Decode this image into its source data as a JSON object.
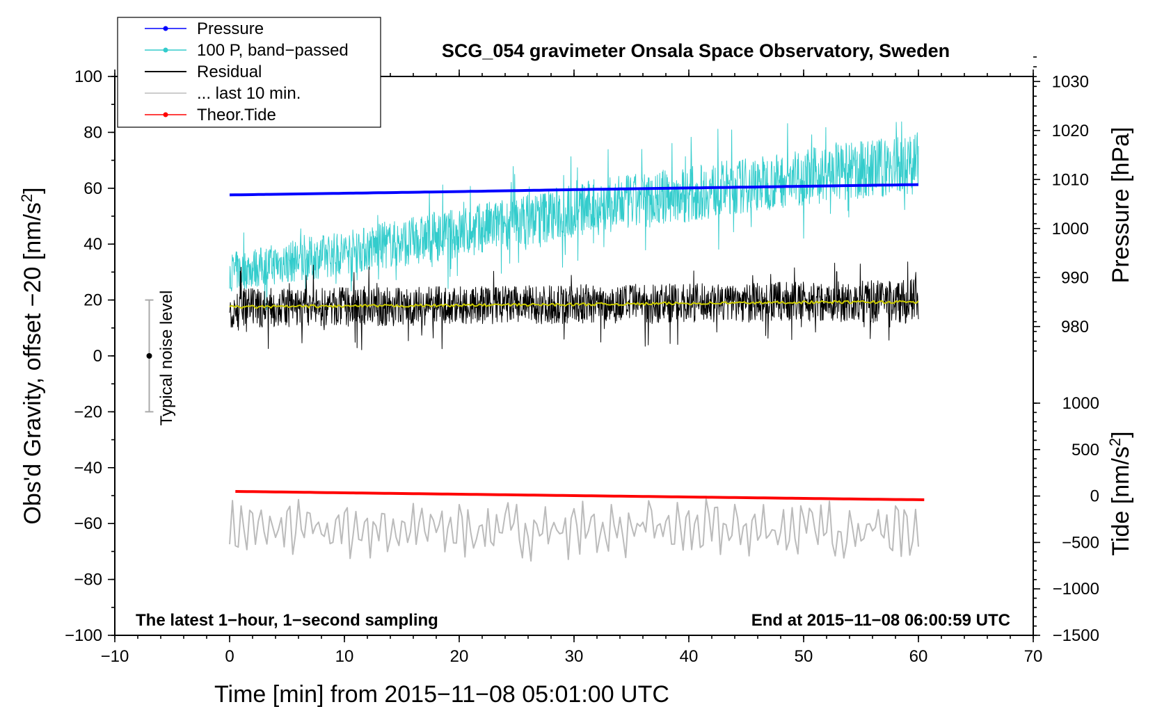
{
  "chart_data": {
    "type": "line",
    "title": "SCG_054 gravimeter Onsala Space Observatory, Sweden",
    "xlabel": "Time [min] from 2015−11−08 05:01:00 UTC",
    "ylabel": "Obs'd Gravity, offset −20 [nm/s",
    "ylabel_sup": "2",
    "ylabel_close": "]",
    "y2_pressure_label": "Pressure [hPa]",
    "y2_tide_label": "Tide [nm/s",
    "y2_tide_sup": "2",
    "y2_tide_close": "]",
    "xlim": [
      -10,
      70
    ],
    "ylim": [
      -100,
      100
    ],
    "pressure_axis": {
      "range_hpa": [
        975,
        1035
      ],
      "ticks": [
        "980",
        "990",
        "1000",
        "1010",
        "1020",
        "1030"
      ]
    },
    "tide_axis": {
      "range": [
        -1500,
        1000
      ],
      "ticks": [
        "−1500",
        "−1000",
        "−500",
        "0",
        "500",
        "1000"
      ]
    },
    "xticks": [
      "−10",
      "0",
      "10",
      "20",
      "30",
      "40",
      "50",
      "60",
      "70"
    ],
    "yticks": [
      "−100",
      "−80",
      "−60",
      "−40",
      "−20",
      "0",
      "20",
      "40",
      "60",
      "80",
      "100"
    ],
    "note_left": "The latest 1−hour, 1−second sampling",
    "note_right": "End at 2015−11−08 06:00:59 UTC",
    "noise_label": "Typical noise level",
    "noise_bar": {
      "x": -7,
      "center": 0,
      "low": -20,
      "high": 20
    },
    "legend": [
      {
        "label": "Pressure",
        "color": "#0000ff",
        "marker": true
      },
      {
        "label": "100 P, band−passed",
        "color": "#33cccc",
        "marker": true
      },
      {
        "label": "Residual",
        "color": "#000000",
        "marker": false
      },
      {
        "label": "... last 10 min.",
        "color": "#bbbbbb",
        "marker": false
      },
      {
        "label": "Theor.Tide",
        "color": "#ff0000",
        "marker": true
      }
    ],
    "series": [
      {
        "name": "Pressure",
        "color": "#0000ff",
        "axis": "gravity",
        "x": [
          0,
          10,
          20,
          30,
          40,
          50,
          60
        ],
        "values": [
          57.6,
          58.2,
          58.8,
          59.5,
          60.1,
          60.7,
          61.3
        ]
      },
      {
        "name": "100 P, band−passed",
        "color": "#33cccc",
        "axis": "gravity",
        "x": [
          0,
          10,
          20,
          30,
          40,
          50,
          60
        ],
        "mean": [
          30,
          37,
          44,
          52,
          58,
          64,
          69
        ],
        "amplitude": [
          7,
          8,
          9,
          10,
          10,
          10,
          11
        ]
      },
      {
        "name": "Residual",
        "color": "#000000",
        "axis": "gravity",
        "x": [
          0,
          10,
          20,
          30,
          40,
          50,
          60
        ],
        "mean": [
          17,
          17.5,
          18,
          18.5,
          19,
          19.5,
          19.5
        ],
        "amplitude": [
          7,
          7,
          7,
          7,
          7,
          7,
          8
        ]
      },
      {
        "name": "Residual smoothed",
        "color": "#cccc00",
        "axis": "gravity",
        "x": [
          0,
          10,
          20,
          30,
          40,
          50,
          60
        ],
        "values": [
          17.5,
          17.8,
          18.1,
          18.4,
          18.8,
          19.2,
          19.3
        ]
      },
      {
        "name": "... last 10 min.",
        "color": "#bbbbbb",
        "axis": "gravity",
        "x": [
          0,
          10,
          20,
          30,
          40,
          50,
          60
        ],
        "mean": [
          -62,
          -62,
          -62,
          -62,
          -62,
          -62,
          -62
        ],
        "amplitude": [
          6,
          6,
          6,
          6,
          6,
          6,
          6
        ]
      },
      {
        "name": "Theor.Tide",
        "color": "#ff0000",
        "axis": "gravity",
        "x": [
          0.5,
          10,
          20,
          30,
          40,
          50,
          60.5
        ],
        "values": [
          -48.5,
          -49.0,
          -49.5,
          -50.0,
          -50.5,
          -51.0,
          -51.5
        ]
      }
    ]
  }
}
